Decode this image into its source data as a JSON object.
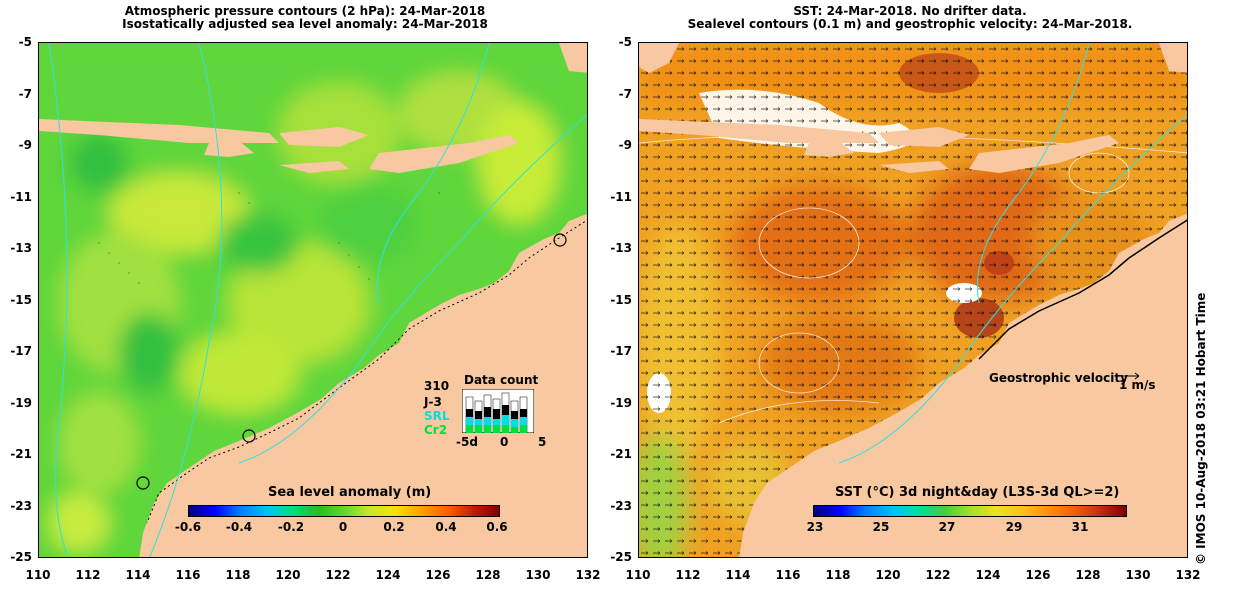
{
  "left_map": {
    "title_line1": "Atmospheric pressure contours (2 hPa): 24-Mar-2018",
    "title_line2": "Isostatically adjusted sea level anomaly: 24-Mar-2018",
    "colorbar": {
      "title": "Sea level anomaly (m)",
      "ticks": [
        "-0.6",
        "-0.4",
        "-0.2",
        "0",
        "0.2",
        "0.4",
        "0.6"
      ],
      "range": [
        -0.6,
        0.6
      ]
    },
    "inset": {
      "title": "Data count",
      "max_label": "310",
      "series": [
        {
          "name": "J-3",
          "color": "#000000"
        },
        {
          "name": "SRL",
          "color": "#00e0e0"
        },
        {
          "name": "Cr2",
          "color": "#00e040"
        }
      ],
      "x_ticks": [
        "-5d",
        "0",
        "5"
      ]
    }
  },
  "right_map": {
    "title_line1": "SST: 24-Mar-2018. No drifter data.",
    "title_line2": "Sealevel contours (0.1 m) and geostrophic velocity: 24-Mar-2018.",
    "colorbar": {
      "title": "SST (°C) 3d night&day (L3S-3d QL>=2)",
      "ticks": [
        "23",
        "25",
        "27",
        "29",
        "31"
      ],
      "range": [
        23,
        32
      ]
    },
    "velocity_legend": {
      "label": "Geostrophic velocity",
      "scale": "1 m/s"
    }
  },
  "axes": {
    "y_ticks": [
      "-5",
      "-7",
      "-9",
      "-11",
      "-13",
      "-15",
      "-17",
      "-19",
      "-21",
      "-23",
      "-25"
    ],
    "x_ticks": [
      "110",
      "112",
      "114",
      "116",
      "118",
      "120",
      "122",
      "124",
      "126",
      "128",
      "130",
      "132"
    ],
    "lon_range": [
      110,
      132
    ],
    "lat_range": [
      -25,
      -5
    ]
  },
  "credit": "© IMOS 10-Aug-2018 03:21 Hobart Time",
  "colors": {
    "land": "#f8c8a0",
    "ocean_left": "#5fd63a",
    "ocean_right": "#f0a020"
  }
}
